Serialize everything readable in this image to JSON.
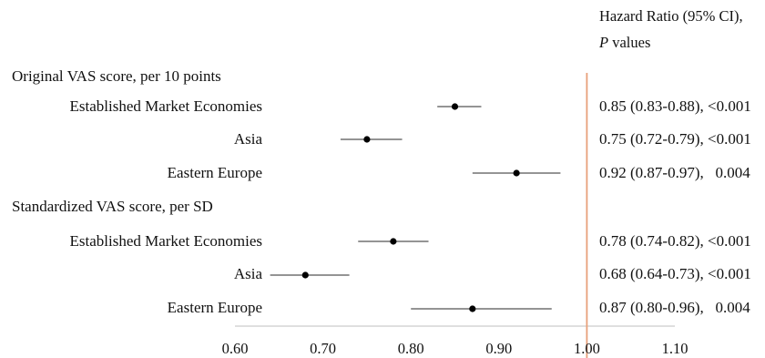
{
  "header": {
    "line1": "Hazard Ratio (95% CI),",
    "line2_italic": "P",
    "line2_rest": " values"
  },
  "colors": {
    "reference_line": "#e8a07a",
    "axis": "#cccccc",
    "point": "#000000",
    "whisker": "#555555"
  },
  "chart_data": {
    "type": "forest",
    "x_ticks": [
      "0.60",
      "0.70",
      "0.80",
      "0.90",
      "1.00",
      "1.10"
    ],
    "xlim": [
      0.6,
      1.1
    ],
    "reference_value": 1.0,
    "sections": [
      {
        "label": "Original VAS score, per 10 points",
        "rows": [
          {
            "label": "Established Market Economies",
            "hr": 0.85,
            "lo": 0.83,
            "hi": 0.88,
            "ci_text": "0.85 (0.83-0.88), <0.001"
          },
          {
            "label": "Asia",
            "hr": 0.75,
            "lo": 0.72,
            "hi": 0.79,
            "ci_text": "0.75 (0.72-0.79), <0.001"
          },
          {
            "label": "Eastern Europe",
            "hr": 0.92,
            "lo": 0.87,
            "hi": 0.97,
            "ci_text": "0.92 (0.87-0.97),   0.004"
          }
        ]
      },
      {
        "label": "Standardized VAS score, per SD",
        "rows": [
          {
            "label": "Established Market Economies",
            "hr": 0.78,
            "lo": 0.74,
            "hi": 0.82,
            "ci_text": "0.78 (0.74-0.82), <0.001"
          },
          {
            "label": "Asia",
            "hr": 0.68,
            "lo": 0.64,
            "hi": 0.73,
            "ci_text": "0.68 (0.64-0.73), <0.001"
          },
          {
            "label": "Eastern Europe",
            "hr": 0.87,
            "lo": 0.8,
            "hi": 0.96,
            "ci_text": "0.87 (0.80-0.96),   0.004"
          }
        ]
      }
    ]
  }
}
